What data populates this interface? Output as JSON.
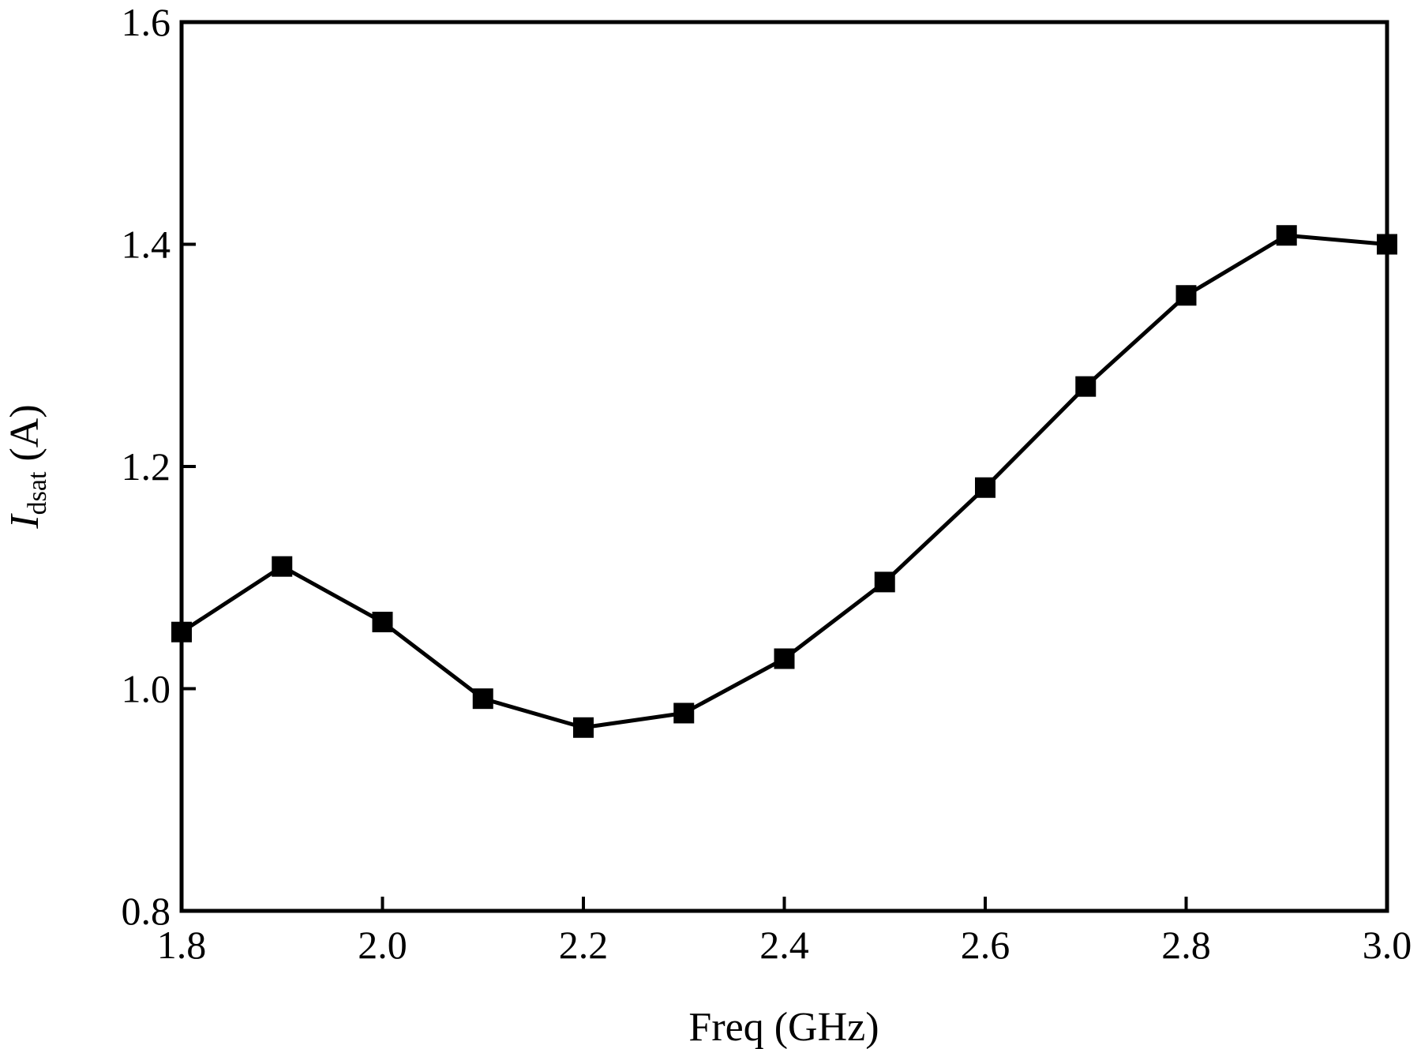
{
  "chart_data": {
    "type": "line",
    "title": "",
    "xlabel": "Freq (GHz)",
    "ylabel": {
      "symbol": "I",
      "subscript": "dsat",
      "unit": " (A)"
    },
    "xlim": [
      1.8,
      3.0
    ],
    "ylim": [
      0.8,
      1.6
    ],
    "xticks": [
      "1.8",
      "2.0",
      "2.2",
      "2.4",
      "2.6",
      "2.8",
      "3.0"
    ],
    "yticks": [
      "0.8",
      "1.0",
      "1.2",
      "1.4",
      "1.6"
    ],
    "grid": false,
    "legend": "none",
    "series": [
      {
        "x": [
          1.8,
          1.9,
          2.0,
          2.1,
          2.2,
          2.3,
          2.4,
          2.5,
          2.6,
          2.7,
          2.8,
          2.9,
          3.0
        ],
        "y": [
          1.051,
          1.11,
          1.06,
          0.991,
          0.965,
          0.978,
          1.027,
          1.096,
          1.181,
          1.272,
          1.354,
          1.408,
          1.4
        ],
        "marker": "square",
        "color": "#000000"
      }
    ]
  }
}
